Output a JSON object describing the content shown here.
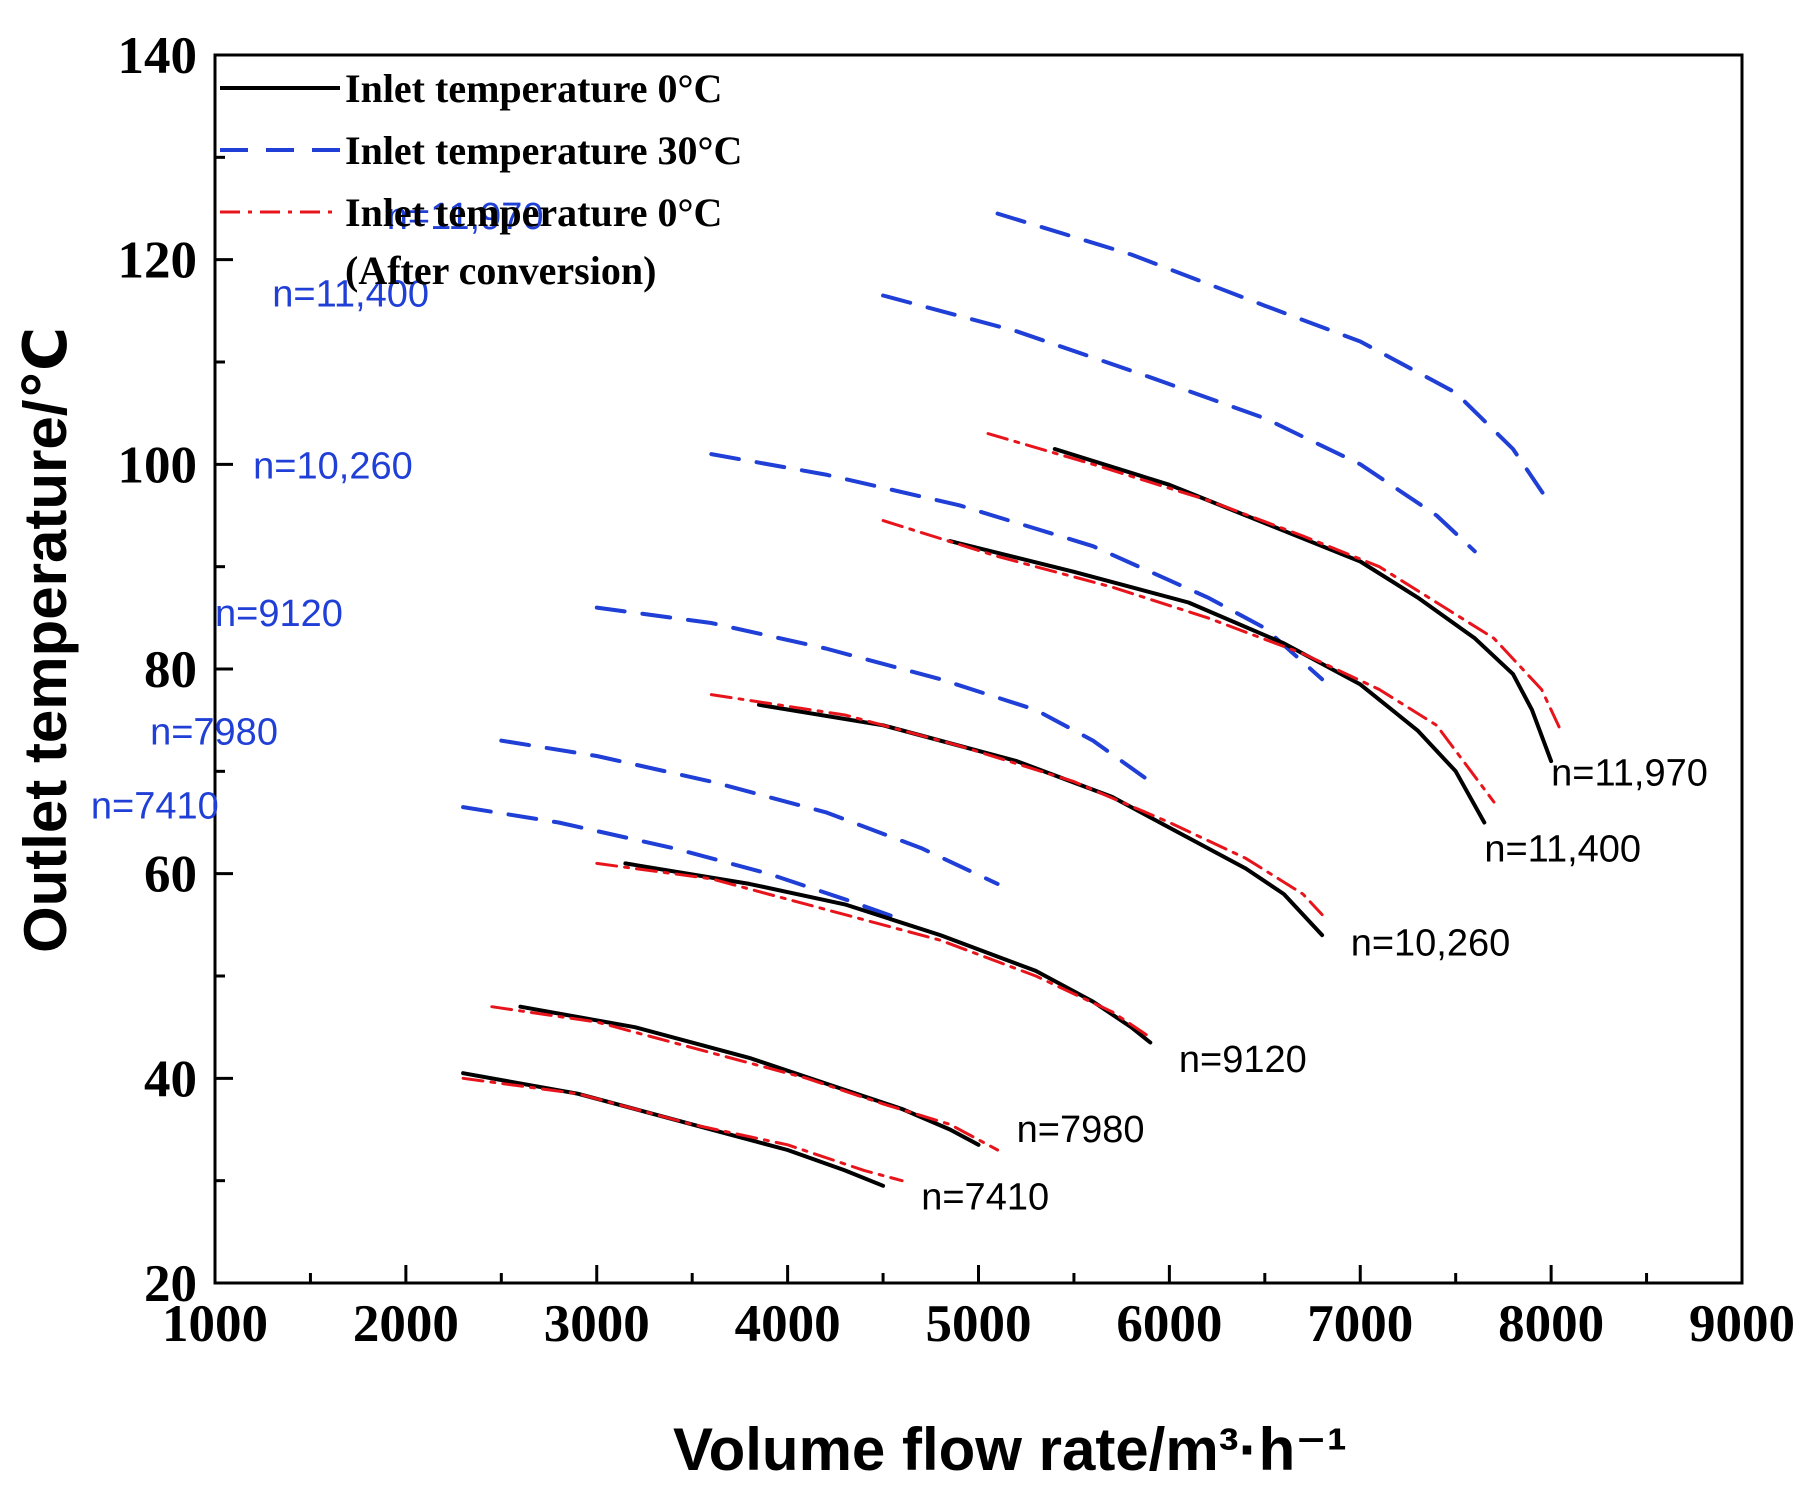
{
  "chart_data": {
    "type": "line",
    "title": "",
    "xlabel": "Volume flow rate/m³·h⁻¹",
    "ylabel": "Outlet temperature/℃",
    "xlim": [
      1000,
      9000
    ],
    "ylim": [
      20,
      140
    ],
    "xticks": [
      1000,
      2000,
      3000,
      4000,
      5000,
      6000,
      7000,
      8000,
      9000
    ],
    "yticks": [
      20,
      40,
      60,
      80,
      100,
      120,
      140
    ],
    "grid": false,
    "legend_position": "top-left",
    "legend": [
      {
        "label": "Inlet temperature 0°C",
        "style": "solid",
        "color": "#000000"
      },
      {
        "label": "Inlet temperature 30°C",
        "style": "dashed",
        "color": "#1f3fd6"
      },
      {
        "label": "Inlet temperature 0°C",
        "label2": "(After conversion)",
        "style": "dashdot",
        "color": "#e8141b"
      }
    ],
    "series": [
      {
        "name": "Inlet temperature 30°C n=11,970",
        "group": "30C",
        "label": "n=11,970",
        "x": [
          5100,
          5800,
          6500,
          7000,
          7500,
          7800,
          8000
        ],
        "y": [
          124.5,
          120.5,
          115.5,
          112,
          107,
          101.5,
          96
        ]
      },
      {
        "name": "Inlet temperature 30°C n=11,400",
        "group": "30C",
        "label": "n=11,400",
        "x": [
          4500,
          5200,
          5900,
          6500,
          7000,
          7400,
          7600
        ],
        "y": [
          116.5,
          113,
          108.5,
          104.5,
          100,
          95,
          91.5
        ]
      },
      {
        "name": "Inlet temperature 30°C n=10,260",
        "group": "30C",
        "label": "n=10,260",
        "x": [
          3600,
          4200,
          4900,
          5600,
          6200,
          6500,
          6800
        ],
        "y": [
          101,
          99,
          96,
          92,
          87,
          84,
          79
        ]
      },
      {
        "name": "Inlet temperature 30°C n=9120",
        "group": "30C",
        "label": "n=9120",
        "x": [
          3000,
          3600,
          4200,
          4800,
          5300,
          5600,
          5900
        ],
        "y": [
          86,
          84.5,
          82,
          79,
          76,
          73,
          69
        ]
      },
      {
        "name": "Inlet temperature 30°C n=7980",
        "group": "30C",
        "label": "n=7980",
        "x": [
          2500,
          3000,
          3600,
          4200,
          4700,
          5100
        ],
        "y": [
          73,
          71.5,
          69,
          66,
          62.5,
          59
        ]
      },
      {
        "name": "Inlet temperature 30°C n=7410",
        "group": "30C",
        "label": "n=7410",
        "x": [
          2300,
          2800,
          3400,
          3900,
          4300,
          4600
        ],
        "y": [
          66.5,
          65,
          62.5,
          60,
          57.5,
          55.5
        ]
      },
      {
        "name": "Inlet temperature 0°C n=11,970",
        "group": "0C",
        "label": "n=11,970",
        "x": [
          5400,
          6000,
          6600,
          7000,
          7300,
          7600,
          7800,
          7900,
          8000
        ],
        "y": [
          101.5,
          98,
          93.5,
          90.5,
          87,
          83,
          79.5,
          76,
          71
        ]
      },
      {
        "name": "Inlet temperature 0°C n=11,400",
        "group": "0C",
        "label": "n=11,400",
        "x": [
          4850,
          5500,
          6100,
          6600,
          7000,
          7300,
          7500,
          7650
        ],
        "y": [
          92.5,
          89.5,
          86.5,
          82.5,
          78.5,
          74,
          70,
          65
        ]
      },
      {
        "name": "Inlet temperature 0°C n=10,260",
        "group": "0C",
        "label": "n=10,260",
        "x": [
          3850,
          4500,
          5200,
          5700,
          6100,
          6400,
          6600,
          6800
        ],
        "y": [
          76.5,
          74.5,
          71,
          67.5,
          63.5,
          60.5,
          58,
          54
        ]
      },
      {
        "name": "Inlet temperature 0°C n=9120",
        "group": "0C",
        "label": "n=9120",
        "x": [
          3150,
          3800,
          4300,
          4800,
          5300,
          5600,
          5800,
          5900
        ],
        "y": [
          61,
          59,
          57,
          54,
          50.5,
          47.5,
          45,
          43.5
        ]
      },
      {
        "name": "Inlet temperature 0°C n=7980",
        "group": "0C",
        "label": "n=7980",
        "x": [
          2600,
          3200,
          3800,
          4200,
          4600,
          4850,
          5000
        ],
        "y": [
          47,
          45,
          42,
          39.5,
          37,
          35,
          33.5
        ]
      },
      {
        "name": "Inlet temperature 0°C n=7410",
        "group": "0C",
        "label": "n=7410",
        "x": [
          2300,
          2900,
          3500,
          4000,
          4300,
          4500
        ],
        "y": [
          40.5,
          38.5,
          35.5,
          33,
          31,
          29.5
        ]
      },
      {
        "name": "Inlet temperature 0°C (After conversion) n=11,970",
        "group": "0C-conv",
        "x": [
          5050,
          5600,
          6200,
          6700,
          7100,
          7400,
          7700,
          7950,
          8050
        ],
        "y": [
          103,
          100,
          96.5,
          93,
          90,
          86.5,
          83,
          78,
          74
        ]
      },
      {
        "name": "Inlet temperature 0°C (After conversion) n=11,400",
        "group": "0C-conv",
        "x": [
          4500,
          5100,
          5700,
          6200,
          6700,
          7100,
          7400,
          7700
        ],
        "y": [
          94.5,
          91,
          88,
          85,
          81.5,
          78,
          74.5,
          67
        ]
      },
      {
        "name": "Inlet temperature 0°C (After conversion) n=10,260",
        "group": "0C-conv",
        "x": [
          3600,
          4300,
          4900,
          5500,
          6000,
          6400,
          6700,
          6800
        ],
        "y": [
          77.5,
          75.5,
          72.5,
          69,
          65,
          61.5,
          58,
          56
        ]
      },
      {
        "name": "Inlet temperature 0°C (After conversion) n=9120",
        "group": "0C-conv",
        "x": [
          3000,
          3600,
          4200,
          4800,
          5300,
          5700,
          5900
        ],
        "y": [
          61,
          59.5,
          56.5,
          53.5,
          50,
          46.5,
          44
        ]
      },
      {
        "name": "Inlet temperature 0°C (After conversion) n=7980",
        "group": "0C-conv",
        "x": [
          2450,
          3000,
          3600,
          4100,
          4500,
          4850,
          5100
        ],
        "y": [
          47,
          45.5,
          42.5,
          40,
          37.5,
          35.5,
          33
        ]
      },
      {
        "name": "Inlet temperature 0°C (After conversion) n=7410",
        "group": "0C-conv",
        "x": [
          2300,
          2900,
          3500,
          4000,
          4400,
          4600
        ],
        "y": [
          40,
          38.5,
          35.5,
          33.5,
          31,
          30
        ]
      }
    ],
    "curve_labels": [
      {
        "text": "n=11,970",
        "group": "30C",
        "x": 1900,
        "y": 123,
        "color": "#1f3fd6"
      },
      {
        "text": "n=11,400",
        "group": "30C",
        "x": 1300,
        "y": 115.4,
        "color": "#1f3fd6"
      },
      {
        "text": "n=10,260",
        "group": "30C",
        "x": 1200,
        "y": 98.6,
        "color": "#1f3fd6"
      },
      {
        "text": "n=9120",
        "group": "30C",
        "x": 1000,
        "y": 84.2,
        "color": "#1f3fd6"
      },
      {
        "text": "n=7980",
        "group": "30C",
        "x": 660,
        "y": 72.6,
        "color": "#1f3fd6"
      },
      {
        "text": "n=7410",
        "group": "30C",
        "x": 350,
        "y": 65.4,
        "color": "#1f3fd6"
      },
      {
        "text": "n=11,970",
        "group": "0C",
        "x": 8000,
        "y": 68.6,
        "color": "#000000"
      },
      {
        "text": "n=11,400",
        "group": "0C",
        "x": 7650,
        "y": 61.2,
        "color": "#000000"
      },
      {
        "text": "n=10,260",
        "group": "0C",
        "x": 6950,
        "y": 52,
        "color": "#000000"
      },
      {
        "text": "n=9120",
        "group": "0C",
        "x": 6050,
        "y": 40.6,
        "color": "#000000"
      },
      {
        "text": "n=7980",
        "group": "0C",
        "x": 5200,
        "y": 33.8,
        "color": "#000000"
      },
      {
        "text": "n=7410",
        "group": "0C",
        "x": 4700,
        "y": 27.2,
        "color": "#000000"
      }
    ],
    "colors": {
      "solid": "#000000",
      "dashed": "#1f3fd6",
      "dashdot": "#e8141b"
    }
  }
}
